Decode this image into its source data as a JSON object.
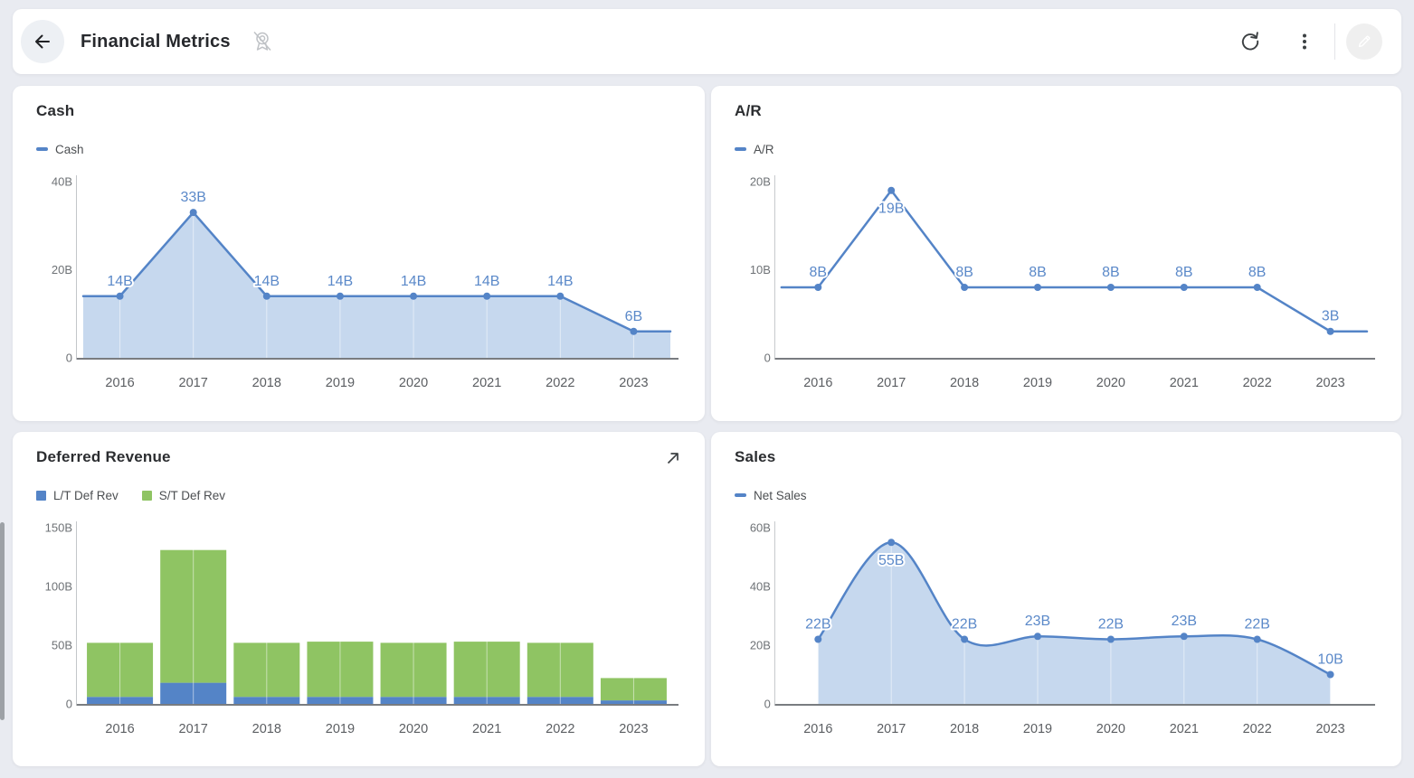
{
  "header": {
    "title": "Financial Metrics",
    "icons": [
      "back-arrow",
      "unpin-ribbon",
      "refresh",
      "more-vertical",
      "edit-pencil"
    ],
    "edit_button_color": "#6c7be4"
  },
  "colors": {
    "page_background": "#e9ebf1",
    "card_background": "#ffffff",
    "series_blue": "#5484c7",
    "area_fill": "#c6d8ee",
    "series_green": "#8fc463",
    "data_label": "#5b89c9",
    "axis_baseline": "#797c80",
    "axis_line": "#c3c6ca"
  },
  "chart_data": [
    {
      "id": "cash",
      "type": "area",
      "title": "Cash",
      "legend": [
        {
          "label": "Cash",
          "color": "#5484c7",
          "marker": "dash"
        }
      ],
      "categories": [
        "2016",
        "2017",
        "2018",
        "2019",
        "2020",
        "2021",
        "2022",
        "2023"
      ],
      "series": [
        {
          "name": "Cash",
          "color": "#5484c7",
          "values": [
            14,
            33,
            14,
            14,
            14,
            14,
            14,
            6
          ]
        }
      ],
      "data_labels": [
        "14B",
        "33B",
        "14B",
        "14B",
        "14B",
        "14B",
        "14B",
        "6B"
      ],
      "ylim": [
        0,
        40
      ],
      "y_ticks": [
        {
          "value": 40,
          "label": "40B"
        },
        {
          "value": 20,
          "label": "20B"
        },
        {
          "value": 0,
          "label": "0"
        }
      ],
      "fill": true,
      "fill_color": "#c6d8ee",
      "smooth": false,
      "edge_extend": true,
      "xlabel": "",
      "ylabel": "",
      "grid": false,
      "legend_position": "top-left"
    },
    {
      "id": "ar",
      "type": "line",
      "title": "A/R",
      "legend": [
        {
          "label": "A/R",
          "color": "#5484c7",
          "marker": "dash"
        }
      ],
      "categories": [
        "2016",
        "2017",
        "2018",
        "2019",
        "2020",
        "2021",
        "2022",
        "2023"
      ],
      "series": [
        {
          "name": "A/R",
          "color": "#5484c7",
          "values": [
            8,
            19,
            8,
            8,
            8,
            8,
            8,
            3
          ]
        }
      ],
      "data_labels": [
        "8B",
        "19B",
        "8B",
        "8B",
        "8B",
        "8B",
        "8B",
        "3B"
      ],
      "ylim": [
        0,
        20
      ],
      "y_ticks": [
        {
          "value": 20,
          "label": "20B"
        },
        {
          "value": 10,
          "label": "10B"
        },
        {
          "value": 0,
          "label": "0"
        }
      ],
      "fill": false,
      "fill_color": "",
      "smooth": false,
      "edge_extend": true,
      "xlabel": "",
      "ylabel": "",
      "grid": false,
      "legend_position": "top-left"
    },
    {
      "id": "deferred-revenue",
      "type": "stacked-bar",
      "title": "Deferred Revenue",
      "show_expand_icon": true,
      "legend": [
        {
          "label": "L/T Def Rev",
          "color": "#5484c7",
          "marker": "square"
        },
        {
          "label": "S/T Def Rev",
          "color": "#8fc463",
          "marker": "square"
        }
      ],
      "categories": [
        "2016",
        "2017",
        "2018",
        "2019",
        "2020",
        "2021",
        "2022",
        "2023"
      ],
      "series": [
        {
          "name": "L/T Def Rev",
          "color": "#5484c7",
          "values": [
            6,
            18,
            6,
            6,
            6,
            6,
            6,
            3
          ]
        },
        {
          "name": "S/T Def Rev",
          "color": "#8fc463",
          "values": [
            46,
            113,
            46,
            47,
            46,
            47,
            46,
            19
          ]
        }
      ],
      "data_labels": [],
      "ylim": [
        0,
        150
      ],
      "y_ticks": [
        {
          "value": 150,
          "label": "150B"
        },
        {
          "value": 100,
          "label": "100B"
        },
        {
          "value": 50,
          "label": "50B"
        },
        {
          "value": 0,
          "label": "0"
        }
      ],
      "xlabel": "",
      "ylabel": "",
      "grid": false,
      "legend_position": "top-left"
    },
    {
      "id": "sales",
      "type": "area",
      "title": "Sales",
      "legend": [
        {
          "label": "Net Sales",
          "color": "#5484c7",
          "marker": "dash"
        }
      ],
      "categories": [
        "2016",
        "2017",
        "2018",
        "2019",
        "2020",
        "2021",
        "2022",
        "2023"
      ],
      "series": [
        {
          "name": "Net Sales",
          "color": "#5484c7",
          "values": [
            22,
            55,
            22,
            23,
            22,
            23,
            22,
            10
          ]
        }
      ],
      "data_labels": [
        "22B",
        "55B",
        "22B",
        "23B",
        "22B",
        "23B",
        "22B",
        "10B"
      ],
      "ylim": [
        0,
        60
      ],
      "y_ticks": [
        {
          "value": 60,
          "label": "60B"
        },
        {
          "value": 40,
          "label": "40B"
        },
        {
          "value": 20,
          "label": "20B"
        },
        {
          "value": 0,
          "label": "0"
        }
      ],
      "fill": true,
      "fill_color": "#c6d8ee",
      "smooth": true,
      "edge_extend": false,
      "xlabel": "",
      "ylabel": "",
      "grid": false,
      "legend_position": "top-left"
    }
  ]
}
